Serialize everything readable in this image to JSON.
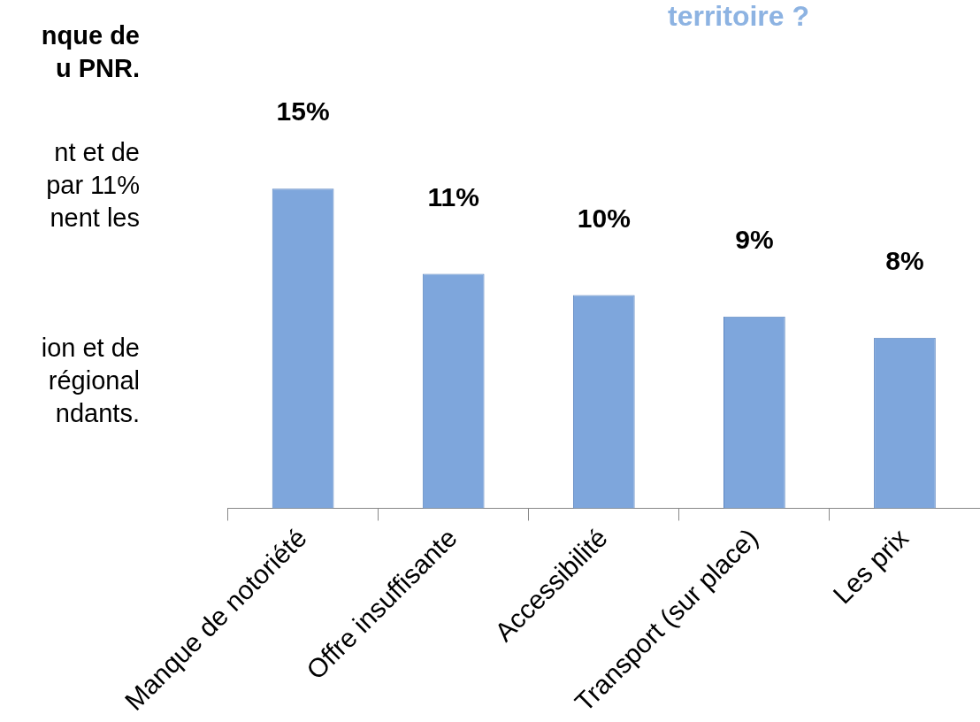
{
  "chart_data": {
    "type": "bar",
    "title": "territoire ?",
    "categories": [
      "Manque de notoriété",
      "Offre insuffisante",
      "Accessibilité",
      "Transport (sur place)",
      "Les prix"
    ],
    "values": [
      15,
      11,
      10,
      9,
      8
    ],
    "value_labels": [
      "15%",
      "11%",
      "10%",
      "9%",
      "8%"
    ],
    "color": "#7ea6dc",
    "annotations": [
      "nque de",
      "u PNR.",
      "nt et de",
      "par 11%",
      "nent les",
      "ion et de",
      "régional",
      "ndants."
    ],
    "legend": false,
    "grid": false
  }
}
